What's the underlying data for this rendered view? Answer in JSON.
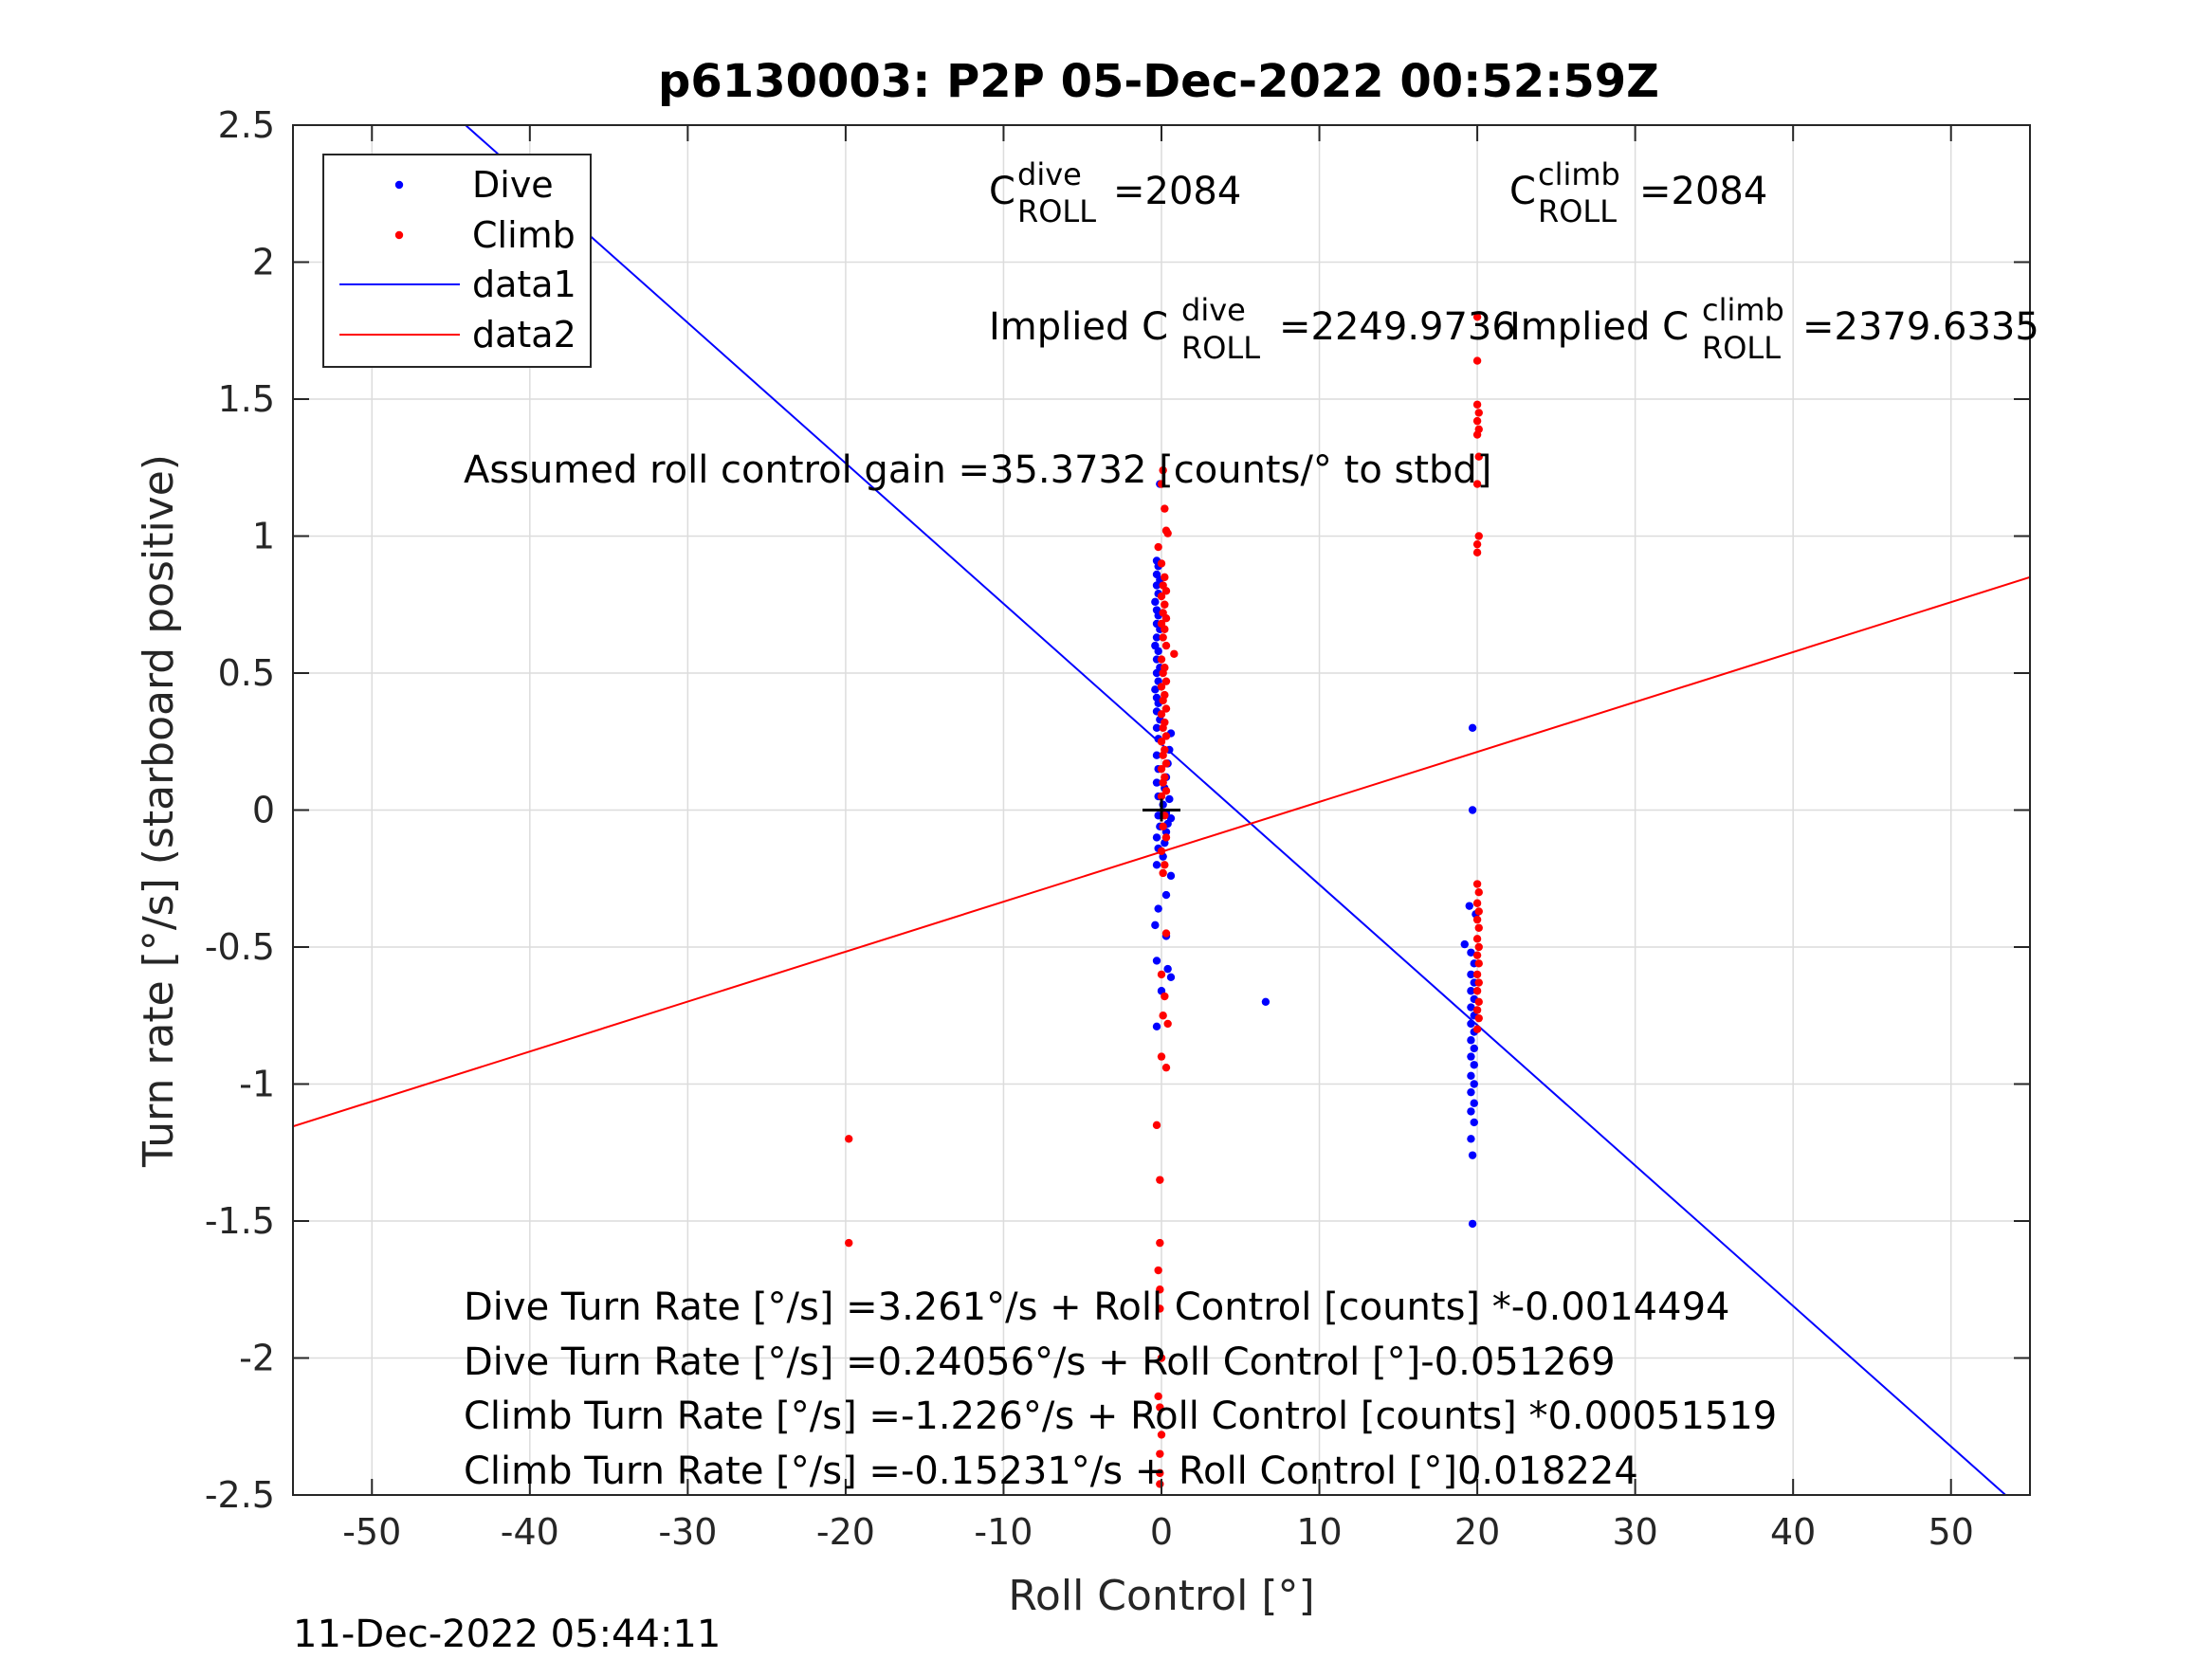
{
  "chart_data": {
    "type": "scatter",
    "title": "p6130003: P2P 05-Dec-2022 00:52:59Z",
    "xlabel": "Roll Control [°]",
    "ylabel": "Turn rate [°/s] (starboard positive)",
    "xlim": [
      -55,
      55
    ],
    "ylim": [
      -2.5,
      2.5
    ],
    "xticks": [
      -50,
      -40,
      -30,
      -20,
      -10,
      0,
      10,
      20,
      30,
      40,
      50
    ],
    "yticks": [
      -2.5,
      -2,
      -1.5,
      -1,
      -0.5,
      0,
      0.5,
      1,
      1.5,
      2,
      2.5
    ],
    "xtick_labels": [
      "-50",
      "-40",
      "-30",
      "-20",
      "-10",
      "0",
      "10",
      "20",
      "30",
      "40",
      "50"
    ],
    "ytick_labels": [
      "-2.5",
      "-2",
      "-1.5",
      "-1",
      "-0.5",
      "0",
      "0.5",
      "1",
      "1.5",
      "2",
      "2.5"
    ],
    "grid": true,
    "legend_position": "top-left",
    "series": [
      {
        "name": "Dive",
        "kind": "scatter",
        "color": "#0000ff",
        "points": [
          [
            -0.3,
            0.91
          ],
          [
            -0.2,
            0.89
          ],
          [
            -0.3,
            0.86
          ],
          [
            -0.1,
            0.84
          ],
          [
            -0.3,
            0.82
          ],
          [
            -0.2,
            0.79
          ],
          [
            -0.4,
            0.76
          ],
          [
            -0.3,
            0.73
          ],
          [
            -0.2,
            0.71
          ],
          [
            -0.3,
            0.68
          ],
          [
            -0.1,
            0.66
          ],
          [
            -0.3,
            0.63
          ],
          [
            -0.4,
            0.6
          ],
          [
            -0.2,
            0.58
          ],
          [
            -0.3,
            0.55
          ],
          [
            -0.1,
            0.52
          ],
          [
            -0.3,
            0.5
          ],
          [
            -0.2,
            0.47
          ],
          [
            -0.4,
            0.44
          ],
          [
            -0.3,
            0.41
          ],
          [
            -0.2,
            0.39
          ],
          [
            -0.3,
            0.36
          ],
          [
            -0.1,
            0.33
          ],
          [
            -0.3,
            0.3
          ],
          [
            0.6,
            0.28
          ],
          [
            -0.2,
            0.26
          ],
          [
            0.5,
            0.22
          ],
          [
            -0.3,
            0.2
          ],
          [
            0.4,
            0.17
          ],
          [
            -0.2,
            0.15
          ],
          [
            0.3,
            0.12
          ],
          [
            -0.3,
            0.1
          ],
          [
            0.2,
            0.08
          ],
          [
            -0.2,
            0.05
          ],
          [
            0.5,
            0.04
          ],
          [
            0.1,
            0.02
          ],
          [
            0.3,
            -0.01
          ],
          [
            -0.2,
            -0.02
          ],
          [
            0.6,
            -0.03
          ],
          [
            0.4,
            -0.05
          ],
          [
            -0.1,
            -0.06
          ],
          [
            0.3,
            -0.08
          ],
          [
            -0.3,
            -0.1
          ],
          [
            0.2,
            -0.12
          ],
          [
            -0.2,
            -0.14
          ],
          [
            0.1,
            -0.17
          ],
          [
            -0.3,
            -0.2
          ],
          [
            0.6,
            -0.24
          ],
          [
            0.3,
            -0.31
          ],
          [
            -0.2,
            -0.36
          ],
          [
            -0.4,
            -0.42
          ],
          [
            0.3,
            -0.46
          ],
          [
            -0.3,
            -0.55
          ],
          [
            0.4,
            -0.58
          ],
          [
            0.6,
            -0.61
          ],
          [
            0.0,
            -0.66
          ],
          [
            -0.3,
            -0.79
          ],
          [
            -0.1,
            1.19
          ],
          [
            6.6,
            -0.7
          ],
          [
            19.7,
            0.3
          ],
          [
            19.7,
            0.0
          ],
          [
            19.5,
            -0.35
          ],
          [
            19.9,
            -0.38
          ],
          [
            19.2,
            -0.49
          ],
          [
            19.6,
            -0.52
          ],
          [
            19.8,
            -0.56
          ],
          [
            19.6,
            -0.6
          ],
          [
            19.8,
            -0.63
          ],
          [
            19.6,
            -0.66
          ],
          [
            19.8,
            -0.69
          ],
          [
            19.6,
            -0.72
          ],
          [
            19.8,
            -0.75
          ],
          [
            19.6,
            -0.78
          ],
          [
            19.8,
            -0.81
          ],
          [
            19.6,
            -0.84
          ],
          [
            19.8,
            -0.87
          ],
          [
            19.6,
            -0.9
          ],
          [
            19.8,
            -0.93
          ],
          [
            19.6,
            -0.97
          ],
          [
            19.8,
            -1.0
          ],
          [
            19.6,
            -1.03
          ],
          [
            19.8,
            -1.07
          ],
          [
            19.6,
            -1.1
          ],
          [
            19.8,
            -1.14
          ],
          [
            19.6,
            -1.2
          ],
          [
            19.7,
            -1.26
          ],
          [
            19.7,
            -1.51
          ]
        ]
      },
      {
        "name": "Climb",
        "kind": "scatter",
        "color": "#ff0000",
        "points": [
          [
            0.1,
            1.24
          ],
          [
            0.0,
            1.19
          ],
          [
            0.2,
            1.1
          ],
          [
            0.3,
            1.02
          ],
          [
            0.4,
            1.01
          ],
          [
            -0.2,
            0.96
          ],
          [
            0.0,
            0.9
          ],
          [
            0.2,
            0.85
          ],
          [
            0.1,
            0.82
          ],
          [
            0.3,
            0.8
          ],
          [
            0.0,
            0.78
          ],
          [
            0.2,
            0.75
          ],
          [
            0.1,
            0.72
          ],
          [
            0.3,
            0.7
          ],
          [
            0.0,
            0.68
          ],
          [
            0.2,
            0.66
          ],
          [
            0.1,
            0.63
          ],
          [
            0.3,
            0.6
          ],
          [
            0.8,
            0.57
          ],
          [
            0.0,
            0.55
          ],
          [
            0.2,
            0.52
          ],
          [
            0.1,
            0.5
          ],
          [
            0.3,
            0.47
          ],
          [
            0.0,
            0.45
          ],
          [
            0.2,
            0.42
          ],
          [
            0.1,
            0.4
          ],
          [
            0.3,
            0.37
          ],
          [
            0.0,
            0.35
          ],
          [
            0.2,
            0.32
          ],
          [
            0.1,
            0.3
          ],
          [
            0.3,
            0.27
          ],
          [
            0.0,
            0.25
          ],
          [
            0.2,
            0.22
          ],
          [
            0.1,
            0.2
          ],
          [
            0.3,
            0.17
          ],
          [
            0.0,
            0.15
          ],
          [
            0.2,
            0.12
          ],
          [
            0.1,
            0.1
          ],
          [
            0.3,
            0.07
          ],
          [
            0.0,
            0.05
          ],
          [
            0.2,
            -0.02
          ],
          [
            0.1,
            -0.06
          ],
          [
            0.3,
            -0.1
          ],
          [
            0.0,
            -0.15
          ],
          [
            0.2,
            -0.2
          ],
          [
            0.1,
            -0.23
          ],
          [
            0.3,
            -0.45
          ],
          [
            0.0,
            -0.6
          ],
          [
            0.2,
            -0.68
          ],
          [
            0.1,
            -0.75
          ],
          [
            0.4,
            -0.78
          ],
          [
            0.0,
            -0.9
          ],
          [
            0.3,
            -0.94
          ],
          [
            -0.3,
            -1.15
          ],
          [
            -0.1,
            -1.35
          ],
          [
            -0.1,
            -1.58
          ],
          [
            -0.2,
            -1.68
          ],
          [
            -0.1,
            -1.75
          ],
          [
            -0.1,
            -1.82
          ],
          [
            0.0,
            -2.0
          ],
          [
            -0.2,
            -2.14
          ],
          [
            -0.1,
            -2.18
          ],
          [
            0.0,
            -2.28
          ],
          [
            -0.1,
            -2.35
          ],
          [
            -0.1,
            -2.42
          ],
          [
            -0.1,
            -2.46
          ],
          [
            -19.8,
            -1.2
          ],
          [
            -19.8,
            -1.58
          ],
          [
            20.0,
            1.8
          ],
          [
            20.0,
            1.64
          ],
          [
            20.0,
            1.48
          ],
          [
            20.1,
            1.45
          ],
          [
            20.0,
            1.42
          ],
          [
            20.1,
            1.39
          ],
          [
            20.0,
            1.37
          ],
          [
            20.1,
            1.29
          ],
          [
            20.0,
            1.19
          ],
          [
            20.1,
            1.0
          ],
          [
            20.0,
            0.97
          ],
          [
            20.0,
            0.94
          ],
          [
            20.0,
            -0.27
          ],
          [
            20.1,
            -0.3
          ],
          [
            20.0,
            -0.34
          ],
          [
            20.1,
            -0.37
          ],
          [
            20.0,
            -0.4
          ],
          [
            20.1,
            -0.43
          ],
          [
            20.0,
            -0.47
          ],
          [
            20.1,
            -0.5
          ],
          [
            20.0,
            -0.53
          ],
          [
            20.1,
            -0.56
          ],
          [
            20.0,
            -0.6
          ],
          [
            20.1,
            -0.63
          ],
          [
            20.0,
            -0.66
          ],
          [
            20.1,
            -0.7
          ],
          [
            20.0,
            -0.73
          ],
          [
            20.1,
            -0.76
          ],
          [
            20.0,
            -0.8
          ]
        ]
      },
      {
        "name": "data1",
        "kind": "line",
        "color": "#0000ff",
        "slope": -0.051269,
        "intercept": 0.24056
      },
      {
        "name": "data2",
        "kind": "line",
        "color": "#ff0000",
        "slope": 0.018224,
        "intercept": -0.15231
      }
    ],
    "origin_marker": [
      0,
      0
    ],
    "annotations": {
      "c_roll_dive_prefix": "C",
      "c_roll_dive_sup": "dive",
      "c_roll_dive_sub": "ROLL",
      "c_roll_dive_value": "=2084",
      "c_roll_climb_prefix": "C",
      "c_roll_climb_sup": "climb",
      "c_roll_climb_sub": "ROLL",
      "c_roll_climb_value": "=2084",
      "implied_dive_prefix": "Implied C",
      "implied_dive_sup": "dive",
      "implied_dive_sub": "ROLL",
      "implied_dive_value": "=2249.9736",
      "implied_climb_prefix": "Implied C",
      "implied_climb_sup": "climb",
      "implied_climb_sub": "ROLL",
      "implied_climb_value": "=2379.6335",
      "gain": "Assumed roll control gain =35.3732 [counts/° to stbd]",
      "eq1": "Dive Turn Rate [°/s] =3.261°/s + Roll Control [counts] *-0.0014494",
      "eq2": "Dive Turn Rate [°/s] =0.24056°/s + Roll Control [°]-0.051269",
      "eq3": "Climb Turn Rate [°/s] =-1.226°/s + Roll Control [counts] *0.00051519",
      "eq4": "Climb Turn Rate [°/s] =-0.15231°/s + Roll Control [°]0.018224"
    },
    "timestamp": "11-Dec-2022 05:44:11"
  }
}
